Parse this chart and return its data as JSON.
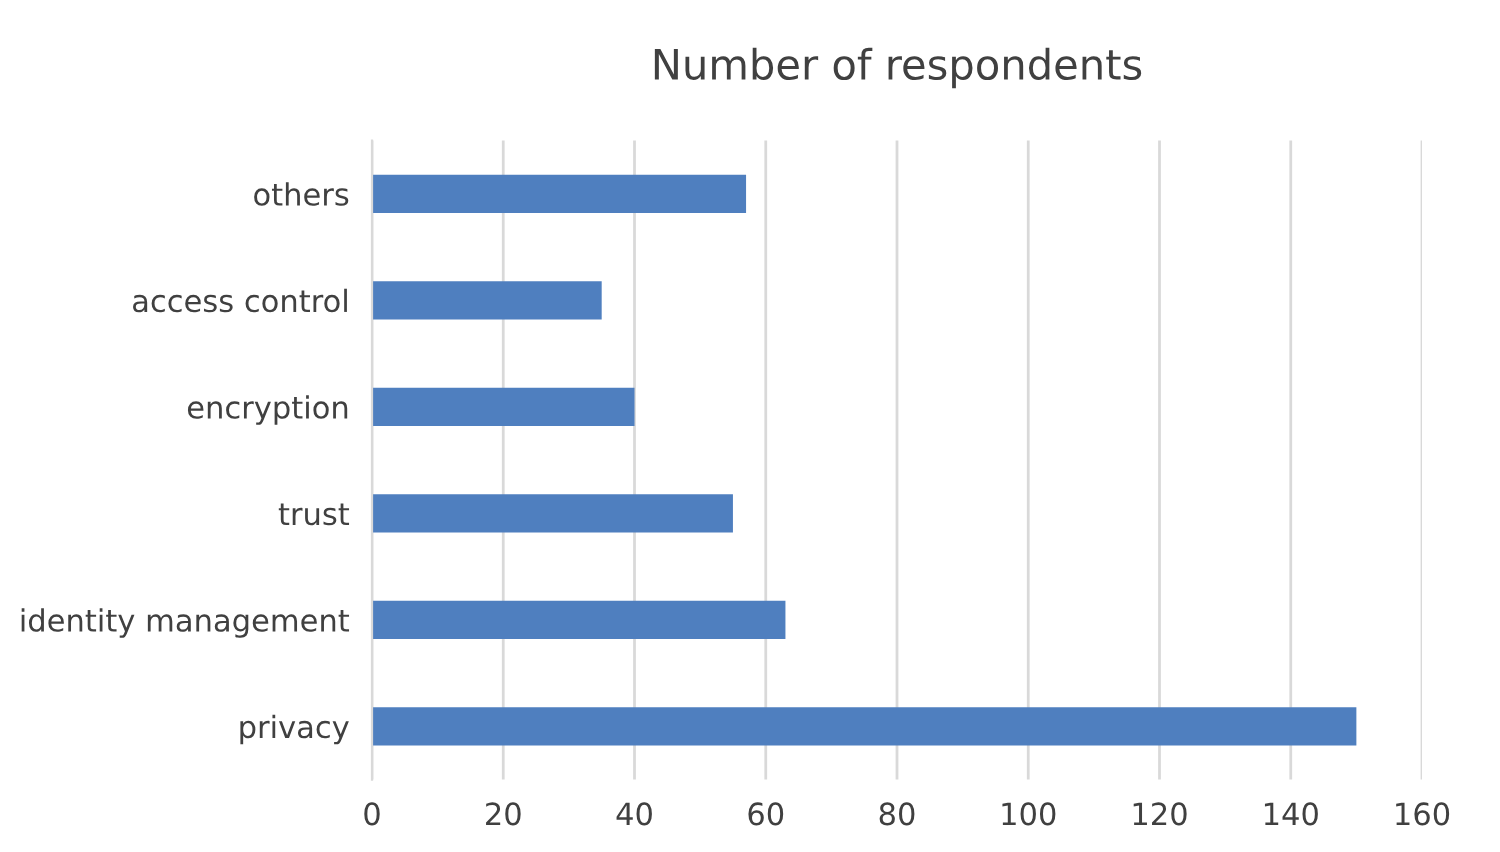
{
  "chart_data": {
    "type": "bar",
    "title": "Number of respondents",
    "orientation": "horizontal",
    "categories": [
      "others",
      "access control",
      "encryption",
      "trust",
      "identity management",
      "privacy"
    ],
    "values": [
      57,
      35,
      40,
      55,
      63,
      150
    ],
    "color": "#4f7fbf",
    "xlim": [
      0,
      160
    ],
    "xticks": [
      0,
      20,
      40,
      60,
      80,
      100,
      120,
      140,
      160
    ],
    "grid": "x",
    "legend": false
  }
}
